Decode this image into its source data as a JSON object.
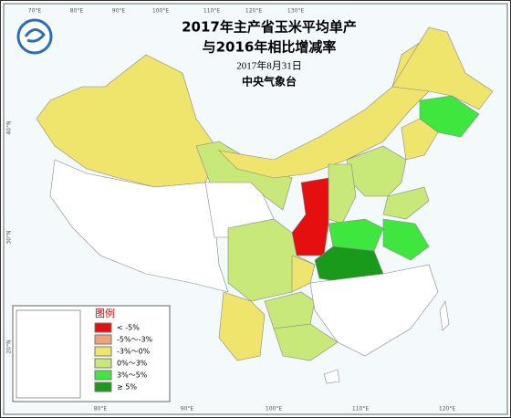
{
  "header": {
    "title_line1": "2017年主产省玉米平均单产",
    "title_line2": "与2016年相比增减率",
    "date": "2017年8月31日",
    "agency": "中央气象台"
  },
  "legend": {
    "title": "图例",
    "items": [
      {
        "label": "< -5%",
        "color": "#e60f0f"
      },
      {
        "label": "-5%～-3%",
        "color": "#f2a27a"
      },
      {
        "label": "-3%～0%",
        "color": "#f0e56c"
      },
      {
        "label": "0%～3%",
        "color": "#c8e87a"
      },
      {
        "label": "3%～5%",
        "color": "#3ee63e"
      },
      {
        "label": "≥ 5%",
        "color": "#1a9a1a"
      }
    ]
  },
  "axes": {
    "top": [
      "70°E",
      "80°E",
      "90°E",
      "100°E",
      "110°E",
      "120°E",
      "130°E"
    ],
    "bottom": [
      "80°E",
      "90°E",
      "100°E",
      "110°E",
      "120°E"
    ],
    "left": [
      "40°N",
      "30°N",
      "20°N"
    ]
  }
}
